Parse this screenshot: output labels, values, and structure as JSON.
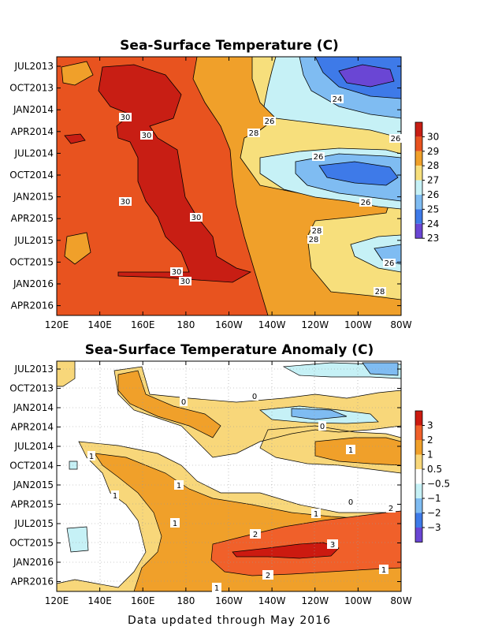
{
  "footer": "Data updated through May 2016",
  "chart_data": [
    {
      "type": "heatmap",
      "title": "Sea-Surface Temperature (C)",
      "x_ticks": [
        "120E",
        "140E",
        "160E",
        "180",
        "160W",
        "140W",
        "120W",
        "100W",
        "80W"
      ],
      "y_ticks": [
        "JUL2013",
        "OCT2013",
        "JAN2014",
        "APR2014",
        "JUL2014",
        "OCT2014",
        "JAN2015",
        "APR2015",
        "JUL2015",
        "OCT2015",
        "JAN2016",
        "APR2016"
      ],
      "colorbar": {
        "labels": [
          "30",
          "29",
          "28",
          "27",
          "26",
          "25",
          "24",
          "23"
        ],
        "colors": [
          "#c81e14",
          "#e8531f",
          "#f0a02a",
          "#f7df7c",
          "#c6f1f6",
          "#7fbcf2",
          "#3e7ae8",
          "#6a46d4"
        ]
      },
      "contour_labels": [
        "30",
        "30",
        "30",
        "30",
        "30",
        "30",
        "28",
        "28",
        "28",
        "28",
        "26",
        "26",
        "26",
        "26",
        "26",
        "24"
      ],
      "grid": false
    },
    {
      "type": "heatmap",
      "title": "Sea-Surface Temperature Anomaly (C)",
      "x_ticks": [
        "120E",
        "140E",
        "160E",
        "180",
        "160W",
        "140W",
        "120W",
        "100W",
        "80W"
      ],
      "y_ticks": [
        "JUL2013",
        "OCT2013",
        "JAN2014",
        "APR2014",
        "JUL2014",
        "OCT2014",
        "JAN2015",
        "APR2015",
        "JUL2015",
        "OCT2015",
        "JAN2016",
        "APR2016"
      ],
      "colorbar": {
        "labels": [
          "3",
          "2",
          "1",
          "0.5",
          "−0.5",
          "−1",
          "−2",
          "−3"
        ],
        "colors": [
          "#cc1a10",
          "#f0602a",
          "#f0a02a",
          "#f8d77a",
          "#ffffff",
          "#c6f1f6",
          "#7fbcf2",
          "#3e7ae8",
          "#6a46d4"
        ]
      },
      "contour_labels": [
        "3",
        "2",
        "2",
        "1",
        "1",
        "1",
        "1",
        "1",
        "1",
        "1",
        "1",
        "0",
        "0",
        "0",
        "0",
        "2"
      ],
      "grid": true
    }
  ]
}
